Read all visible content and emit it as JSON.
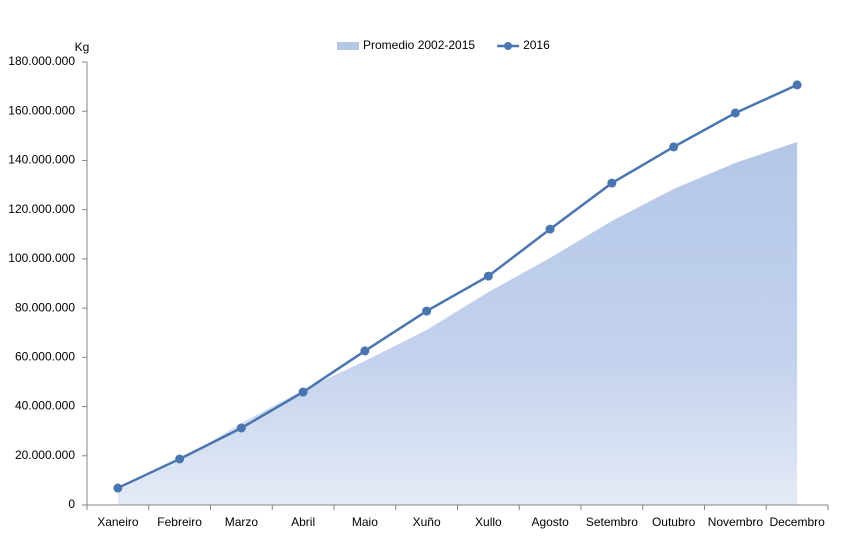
{
  "chart_data": {
    "type": "line",
    "y_label": "Kg",
    "categories": [
      "Xaneiro",
      "Febreiro",
      "Marzo",
      "Abril",
      "Maio",
      "Xuño",
      "Xullo",
      "Agosto",
      "Setembro",
      "Outubro",
      "Novembro",
      "Decembro"
    ],
    "series": [
      {
        "name": "Promedio 2002-2015",
        "style": "area",
        "color": "#b4c7e7",
        "values": [
          6000000,
          18000000,
          33300000,
          46700000,
          58500000,
          71100000,
          86500000,
          100400000,
          115400000,
          128400000,
          139000000,
          147500000
        ]
      },
      {
        "name": "2016",
        "style": "line",
        "color": "#4a76b0",
        "values": [
          6900000,
          18700000,
          31300000,
          45900000,
          62600000,
          78800000,
          93000000,
          112100000,
          130800000,
          145500000,
          159300000,
          170700000
        ]
      }
    ],
    "ylim": [
      0,
      180000000
    ],
    "yticks": [
      {
        "value": 0,
        "label": "0"
      },
      {
        "value": 20000000,
        "label": "20.000.000"
      },
      {
        "value": 40000000,
        "label": "40.000.000"
      },
      {
        "value": 60000000,
        "label": "60.000.000"
      },
      {
        "value": 80000000,
        "label": "80.000.000"
      },
      {
        "value": 100000000,
        "label": "100.000.000"
      },
      {
        "value": 120000000,
        "label": "120.000.000"
      },
      {
        "value": 140000000,
        "label": "140.000.000"
      },
      {
        "value": 160000000,
        "label": "160.000.000"
      },
      {
        "value": 180000000,
        "label": "180.000.000"
      }
    ],
    "legend": "top",
    "grid": false
  }
}
